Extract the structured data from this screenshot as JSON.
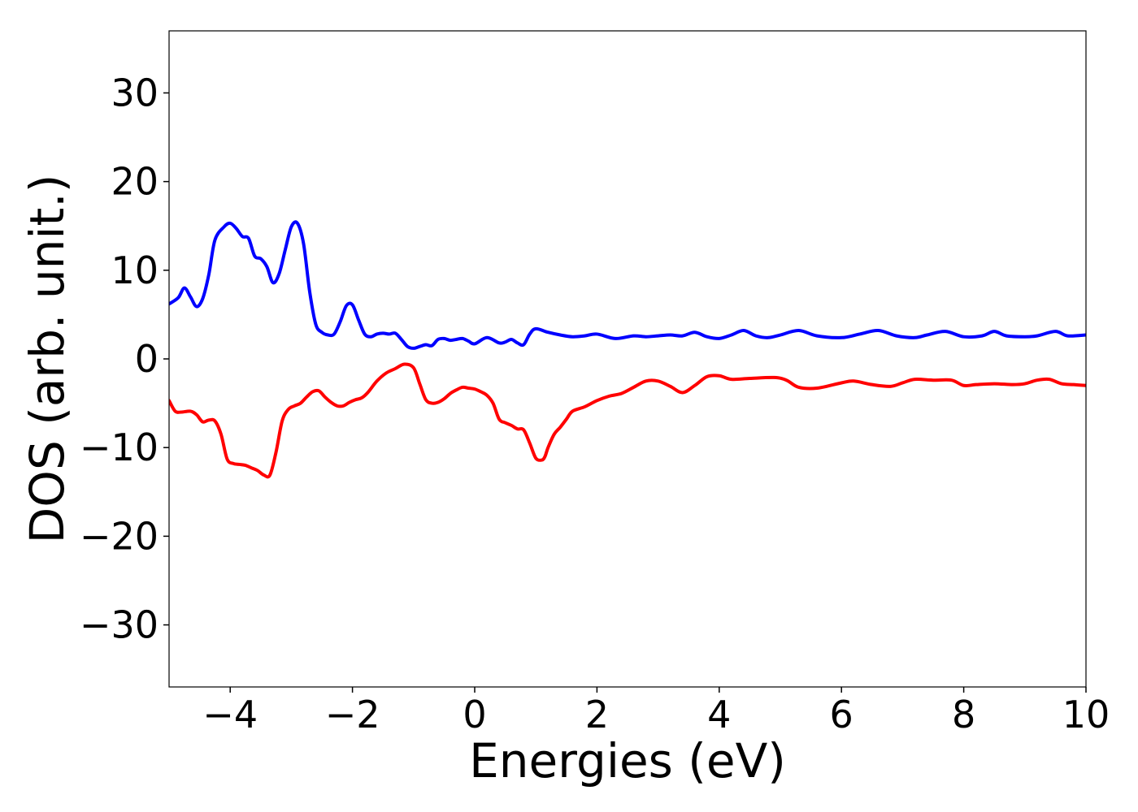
{
  "chart_data": {
    "type": "line",
    "title": "",
    "xlabel": "Energies (eV)",
    "ylabel": "DOS (arb. unit.)",
    "xlim": [
      -5,
      10
    ],
    "ylim": [
      -37,
      37
    ],
    "grid": false,
    "legend": "none",
    "x_ticks": [
      -4,
      -2,
      0,
      2,
      4,
      6,
      8,
      10
    ],
    "x_tick_labels": [
      "−4",
      "−2",
      "0",
      "2",
      "4",
      "6",
      "8",
      "10"
    ],
    "y_ticks": [
      30,
      20,
      10,
      0,
      -10,
      -20,
      -30
    ],
    "y_tick_labels": [
      "30",
      "20",
      "10",
      "0",
      "−10",
      "−20",
      "−30"
    ],
    "series": [
      {
        "color": "#0000ff",
        "x": [
          -5.0,
          -4.85,
          -4.75,
          -4.65,
          -4.55,
          -4.45,
          -4.35,
          -4.25,
          -4.1,
          -4.0,
          -3.9,
          -3.8,
          -3.7,
          -3.6,
          -3.5,
          -3.4,
          -3.3,
          -3.2,
          -3.1,
          -3.0,
          -2.9,
          -2.8,
          -2.7,
          -2.6,
          -2.5,
          -2.4,
          -2.3,
          -2.2,
          -2.1,
          -2.0,
          -1.9,
          -1.8,
          -1.7,
          -1.6,
          -1.5,
          -1.4,
          -1.3,
          -1.2,
          -1.1,
          -1.0,
          -0.9,
          -0.8,
          -0.7,
          -0.6,
          -0.5,
          -0.4,
          -0.3,
          -0.2,
          -0.1,
          0.0,
          0.2,
          0.4,
          0.5,
          0.6,
          0.7,
          0.8,
          0.9,
          1.0,
          1.2,
          1.4,
          1.6,
          1.8,
          2.0,
          2.3,
          2.6,
          2.8,
          3.0,
          3.2,
          3.4,
          3.6,
          3.8,
          4.0,
          4.2,
          4.4,
          4.6,
          4.8,
          5.0,
          5.3,
          5.6,
          6.0,
          6.3,
          6.6,
          6.9,
          7.2,
          7.4,
          7.7,
          8.0,
          8.3,
          8.5,
          8.7,
          9.0,
          9.2,
          9.5,
          9.7,
          10.0
        ],
        "y": [
          6.2,
          6.9,
          8.0,
          7.0,
          5.9,
          6.8,
          9.5,
          13.4,
          14.9,
          15.3,
          14.7,
          13.8,
          13.6,
          11.6,
          11.3,
          10.4,
          8.6,
          9.6,
          12.3,
          14.9,
          15.3,
          13.0,
          7.6,
          3.9,
          3.0,
          2.7,
          2.8,
          4.2,
          6.0,
          6.1,
          4.4,
          2.8,
          2.5,
          2.8,
          2.9,
          2.8,
          2.9,
          2.2,
          1.4,
          1.2,
          1.4,
          1.6,
          1.5,
          2.2,
          2.3,
          2.1,
          2.2,
          2.3,
          2.0,
          1.7,
          2.4,
          1.8,
          1.9,
          2.2,
          1.8,
          1.6,
          2.8,
          3.4,
          3.0,
          2.7,
          2.5,
          2.6,
          2.8,
          2.3,
          2.6,
          2.5,
          2.6,
          2.7,
          2.6,
          3.0,
          2.5,
          2.3,
          2.7,
          3.2,
          2.6,
          2.4,
          2.7,
          3.2,
          2.6,
          2.4,
          2.8,
          3.2,
          2.6,
          2.4,
          2.7,
          3.1,
          2.5,
          2.6,
          3.1,
          2.6,
          2.5,
          2.6,
          3.1,
          2.6,
          2.7
        ]
      },
      {
        "color": "#ff0000",
        "x": [
          -5.0,
          -4.9,
          -4.8,
          -4.65,
          -4.55,
          -4.45,
          -4.35,
          -4.25,
          -4.15,
          -4.05,
          -3.95,
          -3.85,
          -3.75,
          -3.65,
          -3.55,
          -3.45,
          -3.35,
          -3.25,
          -3.15,
          -3.05,
          -2.95,
          -2.85,
          -2.75,
          -2.65,
          -2.55,
          -2.45,
          -2.35,
          -2.25,
          -2.15,
          -2.05,
          -1.95,
          -1.85,
          -1.75,
          -1.6,
          -1.45,
          -1.3,
          -1.15,
          -1.0,
          -0.9,
          -0.8,
          -0.7,
          -0.6,
          -0.5,
          -0.4,
          -0.3,
          -0.2,
          -0.1,
          0.0,
          0.1,
          0.2,
          0.3,
          0.4,
          0.5,
          0.6,
          0.7,
          0.8,
          0.9,
          1.0,
          1.1,
          1.15,
          1.2,
          1.3,
          1.4,
          1.5,
          1.6,
          1.8,
          2.0,
          2.2,
          2.4,
          2.6,
          2.8,
          3.0,
          3.2,
          3.4,
          3.6,
          3.8,
          4.0,
          4.2,
          4.5,
          4.9,
          5.1,
          5.3,
          5.6,
          6.0,
          6.2,
          6.5,
          6.8,
          7.0,
          7.2,
          7.5,
          7.8,
          8.0,
          8.2,
          8.5,
          8.8,
          9.0,
          9.2,
          9.4,
          9.6,
          9.8,
          10.0
        ],
        "y": [
          -4.7,
          -5.9,
          -6.0,
          -5.9,
          -6.3,
          -7.1,
          -6.9,
          -7.0,
          -8.5,
          -11.3,
          -11.8,
          -11.9,
          -12.0,
          -12.3,
          -12.6,
          -13.1,
          -13.1,
          -10.5,
          -7.0,
          -5.7,
          -5.3,
          -5.0,
          -4.3,
          -3.7,
          -3.6,
          -4.3,
          -4.9,
          -5.3,
          -5.3,
          -4.9,
          -4.6,
          -4.4,
          -3.8,
          -2.5,
          -1.6,
          -1.1,
          -0.6,
          -1.0,
          -2.8,
          -4.6,
          -5.0,
          -4.9,
          -4.5,
          -3.9,
          -3.5,
          -3.2,
          -3.3,
          -3.4,
          -3.7,
          -4.1,
          -5.0,
          -6.8,
          -7.2,
          -7.5,
          -7.9,
          -8.0,
          -9.5,
          -11.2,
          -11.4,
          -11.0,
          -10.0,
          -8.5,
          -7.7,
          -6.8,
          -5.9,
          -5.4,
          -4.7,
          -4.2,
          -3.9,
          -3.2,
          -2.5,
          -2.5,
          -3.1,
          -3.8,
          -3.0,
          -2.0,
          -1.9,
          -2.3,
          -2.2,
          -2.1,
          -2.4,
          -3.2,
          -3.3,
          -2.7,
          -2.5,
          -2.9,
          -3.1,
          -2.7,
          -2.3,
          -2.4,
          -2.4,
          -3.0,
          -2.9,
          -2.8,
          -2.9,
          -2.8,
          -2.4,
          -2.3,
          -2.8,
          -2.9,
          -3.0
        ]
      }
    ]
  }
}
